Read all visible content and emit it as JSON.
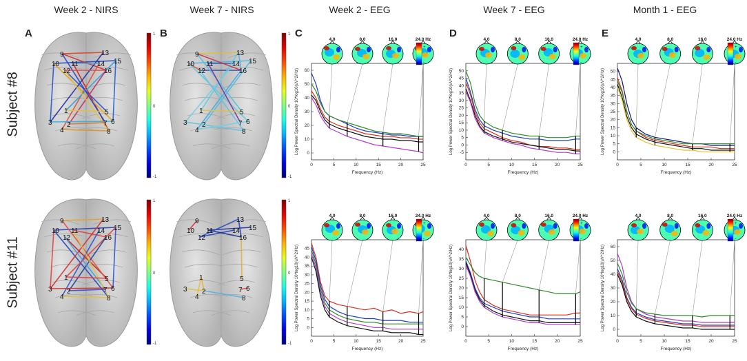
{
  "column_titles": [
    "Week 2 - NIRS",
    "Week 7 - NIRS",
    "Week 2 - EEG",
    "Week 7 - EEG",
    "Month 1 - EEG"
  ],
  "row_labels": [
    "Subject #8",
    "Subject #11"
  ],
  "panel_letters": [
    "A",
    "B",
    "C",
    "D",
    "E"
  ],
  "colorbar_ticks": {
    "nirs_A": [
      "1",
      "0",
      "-1"
    ],
    "nirs_B": [
      "1",
      "0",
      "-1"
    ]
  },
  "node_labels": [
    "1",
    "2",
    "3",
    "4",
    "5",
    "6",
    "7",
    "8",
    "9",
    "10",
    "11",
    "12",
    "13",
    "14",
    "15",
    "16"
  ],
  "topo_labels": [
    "4.0",
    "8.0",
    "16.0",
    "24.0 Hz"
  ],
  "topo_colorbar_ticks": [
    "+",
    "-"
  ],
  "colors": {
    "red": "#d7301f",
    "blue": "#1f3fbf",
    "green": "#2e8b2e",
    "black": "#111111",
    "magenta": "#b03cc8",
    "cyan": "#29b6d6",
    "yellow": "#e6c229",
    "darkblue": "#12127a"
  },
  "chart_data": [
    {
      "type": "line",
      "panel": "C",
      "subject": "Subject #8",
      "title": "Week 2 - EEG",
      "xlabel": "Frequency (Hz)",
      "ylabel": "Log Power Spectral Density 10*log10(uV^2/Hz)",
      "xlim": [
        0,
        25
      ],
      "ylim": [
        -5,
        65
      ],
      "x_ticks": [
        0,
        5,
        10,
        15,
        20,
        25
      ],
      "y_ticks": [
        0,
        10,
        20,
        30,
        40,
        50,
        60
      ],
      "x": [
        0,
        1,
        2,
        3,
        4,
        6,
        8,
        10,
        12,
        14,
        16,
        18,
        20,
        22,
        24,
        25
      ],
      "series": [
        {
          "name": "blue",
          "values": [
            58,
            50,
            38,
            30,
            27,
            24,
            21,
            18,
            16,
            15,
            14,
            13,
            13,
            12,
            12,
            12
          ]
        },
        {
          "name": "green",
          "values": [
            50,
            45,
            36,
            30,
            27,
            24,
            22,
            20,
            18,
            16,
            15,
            14,
            14,
            13,
            12,
            12
          ]
        },
        {
          "name": "red",
          "values": [
            45,
            40,
            32,
            26,
            23,
            20,
            18,
            16,
            14,
            13,
            12,
            12,
            11,
            11,
            10,
            10
          ]
        },
        {
          "name": "black",
          "values": [
            42,
            38,
            30,
            24,
            21,
            18,
            16,
            14,
            12,
            11,
            10,
            10,
            9,
            9,
            8,
            8
          ]
        },
        {
          "name": "magenta",
          "values": [
            40,
            35,
            27,
            22,
            18,
            15,
            12,
            10,
            8,
            6,
            5,
            4,
            3,
            2,
            1,
            0
          ]
        }
      ],
      "markers_hz": [
        4,
        8,
        16,
        24
      ]
    },
    {
      "type": "line",
      "panel": "D",
      "subject": "Subject #8",
      "title": "Week 7 - EEG",
      "xlabel": "Frequency (Hz)",
      "ylabel": "Log Power Spectral Density 10*log10(uV^2/Hz)",
      "xlim": [
        0,
        25
      ],
      "ylim": [
        -10,
        55
      ],
      "x_ticks": [
        0,
        5,
        10,
        15,
        20,
        25
      ],
      "y_ticks": [
        -5,
        0,
        5,
        10,
        15,
        20,
        25,
        30,
        35,
        40,
        45,
        50
      ],
      "x": [
        0,
        1,
        2,
        3,
        4,
        6,
        8,
        10,
        12,
        14,
        16,
        18,
        20,
        22,
        24,
        25
      ],
      "series": [
        {
          "name": "green",
          "values": [
            50,
            42,
            28,
            20,
            16,
            12,
            10,
            8,
            7,
            6,
            6,
            5,
            5,
            5,
            6,
            6
          ]
        },
        {
          "name": "blue",
          "values": [
            45,
            36,
            24,
            17,
            13,
            10,
            8,
            6,
            5,
            4,
            4,
            3,
            3,
            3,
            4,
            4
          ]
        },
        {
          "name": "red",
          "values": [
            42,
            34,
            22,
            15,
            11,
            8,
            5,
            3,
            2,
            0,
            -1,
            -1,
            -2,
            -2,
            -3,
            -3
          ]
        },
        {
          "name": "black",
          "values": [
            38,
            30,
            20,
            13,
            9,
            6,
            4,
            2,
            1,
            0,
            -1,
            -2,
            -3,
            -3,
            -4,
            -4
          ]
        },
        {
          "name": "magenta",
          "values": [
            36,
            29,
            18,
            12,
            8,
            5,
            3,
            1,
            0,
            -2,
            -3,
            -4,
            -5,
            -5,
            -6,
            -6
          ]
        }
      ],
      "markers_hz": [
        4,
        8,
        16,
        24
      ]
    },
    {
      "type": "line",
      "panel": "E",
      "subject": "Subject #8",
      "title": "Month 1 - EEG",
      "xlabel": "Frequency (Hz)",
      "ylabel": "Log Power Spectral Density 10*log10(uV^2/Hz)",
      "xlim": [
        0,
        25
      ],
      "ylim": [
        -5,
        55
      ],
      "x_ticks": [
        0,
        5,
        10,
        15,
        20,
        25
      ],
      "y_ticks": [
        0,
        5,
        10,
        15,
        20,
        25,
        30,
        35,
        40,
        45,
        50
      ],
      "x": [
        0,
        1,
        2,
        3,
        4,
        6,
        8,
        10,
        12,
        14,
        16,
        18,
        20,
        22,
        24,
        25
      ],
      "series": [
        {
          "name": "darkblue",
          "values": [
            52,
            44,
            30,
            20,
            15,
            11,
            9,
            8,
            7,
            6,
            5,
            5,
            4,
            4,
            4,
            4
          ]
        },
        {
          "name": "red",
          "values": [
            46,
            38,
            25,
            17,
            13,
            9,
            7,
            6,
            5,
            4,
            3,
            3,
            3,
            2,
            2,
            2
          ]
        },
        {
          "name": "green",
          "values": [
            44,
            37,
            25,
            17,
            13,
            10,
            8,
            7,
            6,
            5,
            5,
            5,
            5,
            5,
            5,
            5
          ]
        },
        {
          "name": "black",
          "values": [
            42,
            34,
            22,
            15,
            11,
            8,
            6,
            5,
            4,
            3,
            2,
            2,
            1,
            1,
            1,
            1
          ]
        },
        {
          "name": "yellow",
          "values": [
            40,
            32,
            20,
            13,
            9,
            6,
            4,
            3,
            2,
            1,
            1,
            0,
            0,
            0,
            0,
            0
          ]
        }
      ],
      "markers_hz": [
        4,
        8,
        16,
        24
      ]
    },
    {
      "type": "line",
      "panel": "C",
      "subject": "Subject #11",
      "title": "Week 2 - EEG",
      "xlabel": "Frequency (Hz)",
      "ylabel": "Log Power Spectral Density 10*log10(uV^2/Hz)",
      "xlim": [
        0,
        25
      ],
      "ylim": [
        -5,
        50
      ],
      "x_ticks": [
        0,
        5,
        10,
        15,
        20,
        25
      ],
      "y_ticks": [
        0,
        5,
        10,
        15,
        20,
        25,
        30,
        35,
        40,
        45
      ],
      "x": [
        0,
        1,
        2,
        3,
        4,
        6,
        8,
        10,
        12,
        14,
        16,
        18,
        20,
        22,
        24,
        25
      ],
      "series": [
        {
          "name": "red",
          "values": [
            48,
            40,
            26,
            18,
            15,
            13,
            12,
            11,
            10,
            11,
            9,
            10,
            8,
            9,
            8,
            9
          ]
        },
        {
          "name": "blue",
          "values": [
            46,
            38,
            24,
            16,
            12,
            9,
            7,
            6,
            5,
            5,
            4,
            4,
            4,
            3,
            3,
            3
          ]
        },
        {
          "name": "green",
          "values": [
            44,
            36,
            22,
            14,
            10,
            7,
            5,
            4,
            3,
            3,
            2,
            2,
            2,
            2,
            2,
            2
          ]
        },
        {
          "name": "magenta",
          "values": [
            42,
            34,
            20,
            12,
            8,
            5,
            3,
            2,
            1,
            0,
            0,
            -1,
            -1,
            -1,
            -1,
            -1
          ]
        },
        {
          "name": "black",
          "values": [
            40,
            32,
            18,
            10,
            6,
            3,
            1,
            0,
            -1,
            -2,
            -2,
            -3,
            -3,
            -3,
            -4,
            -4
          ]
        }
      ],
      "markers_hz": [
        4,
        8,
        16,
        24
      ]
    },
    {
      "type": "line",
      "panel": "D",
      "subject": "Subject #11",
      "title": "Week 7 - EEG",
      "xlabel": "Frequency (Hz)",
      "ylabel": "Log Power Spectral Density 10*log10(uV^2/Hz)",
      "xlim": [
        0,
        25
      ],
      "ylim": [
        -5,
        45
      ],
      "x_ticks": [
        0,
        5,
        10,
        15,
        20,
        25
      ],
      "y_ticks": [
        0,
        5,
        10,
        15,
        20,
        25,
        30,
        35,
        40
      ],
      "x": [
        0,
        1,
        2,
        3,
        4,
        6,
        8,
        10,
        12,
        14,
        16,
        18,
        20,
        22,
        24,
        25
      ],
      "series": [
        {
          "name": "red",
          "values": [
            42,
            34,
            24,
            18,
            14,
            11,
            9,
            8,
            7,
            6,
            6,
            6,
            6,
            6,
            7,
            7
          ]
        },
        {
          "name": "green",
          "values": [
            36,
            32,
            28,
            26,
            25,
            24,
            23,
            22,
            21,
            20,
            19,
            18,
            17,
            17,
            17,
            18
          ]
        },
        {
          "name": "blue",
          "values": [
            34,
            28,
            20,
            15,
            12,
            10,
            8,
            7,
            6,
            5,
            5,
            4,
            4,
            4,
            4,
            4
          ]
        },
        {
          "name": "black",
          "values": [
            33,
            27,
            19,
            14,
            11,
            8,
            6,
            5,
            4,
            3,
            3,
            2,
            2,
            2,
            2,
            2
          ]
        },
        {
          "name": "magenta",
          "values": [
            32,
            26,
            18,
            13,
            10,
            7,
            5,
            4,
            3,
            2,
            2,
            1,
            1,
            1,
            1,
            1
          ]
        }
      ],
      "markers_hz": [
        4,
        8,
        16,
        24
      ]
    },
    {
      "type": "line",
      "panel": "E",
      "subject": "Subject #11",
      "title": "Month 1 - EEG",
      "xlabel": "Frequency (Hz)",
      "ylabel": "Log Power Spectral Density 10*log10(uV^2/Hz)",
      "xlim": [
        0,
        25
      ],
      "ylim": [
        -5,
        65
      ],
      "x_ticks": [
        0,
        5,
        10,
        15,
        20,
        25
      ],
      "y_ticks": [
        0,
        10,
        20,
        30,
        40,
        50,
        60
      ],
      "x": [
        0,
        1,
        2,
        3,
        4,
        6,
        8,
        10,
        12,
        14,
        16,
        18,
        20,
        22,
        24,
        25
      ],
      "series": [
        {
          "name": "magenta",
          "values": [
            55,
            46,
            30,
            20,
            15,
            11,
            9,
            8,
            7,
            6,
            6,
            5,
            5,
            5,
            5,
            5
          ]
        },
        {
          "name": "green",
          "values": [
            48,
            40,
            27,
            19,
            15,
            12,
            11,
            10,
            10,
            10,
            10,
            9,
            10,
            10,
            10,
            10
          ]
        },
        {
          "name": "blue",
          "values": [
            44,
            36,
            23,
            16,
            12,
            9,
            7,
            6,
            5,
            4,
            4,
            3,
            3,
            3,
            3,
            3
          ]
        },
        {
          "name": "red",
          "values": [
            42,
            34,
            22,
            15,
            11,
            8,
            6,
            5,
            4,
            3,
            3,
            2,
            2,
            2,
            2,
            2
          ]
        },
        {
          "name": "black",
          "values": [
            40,
            32,
            20,
            13,
            9,
            6,
            4,
            3,
            2,
            1,
            1,
            0,
            0,
            0,
            0,
            0
          ]
        }
      ],
      "markers_hz": [
        4,
        8,
        16,
        24
      ]
    }
  ]
}
